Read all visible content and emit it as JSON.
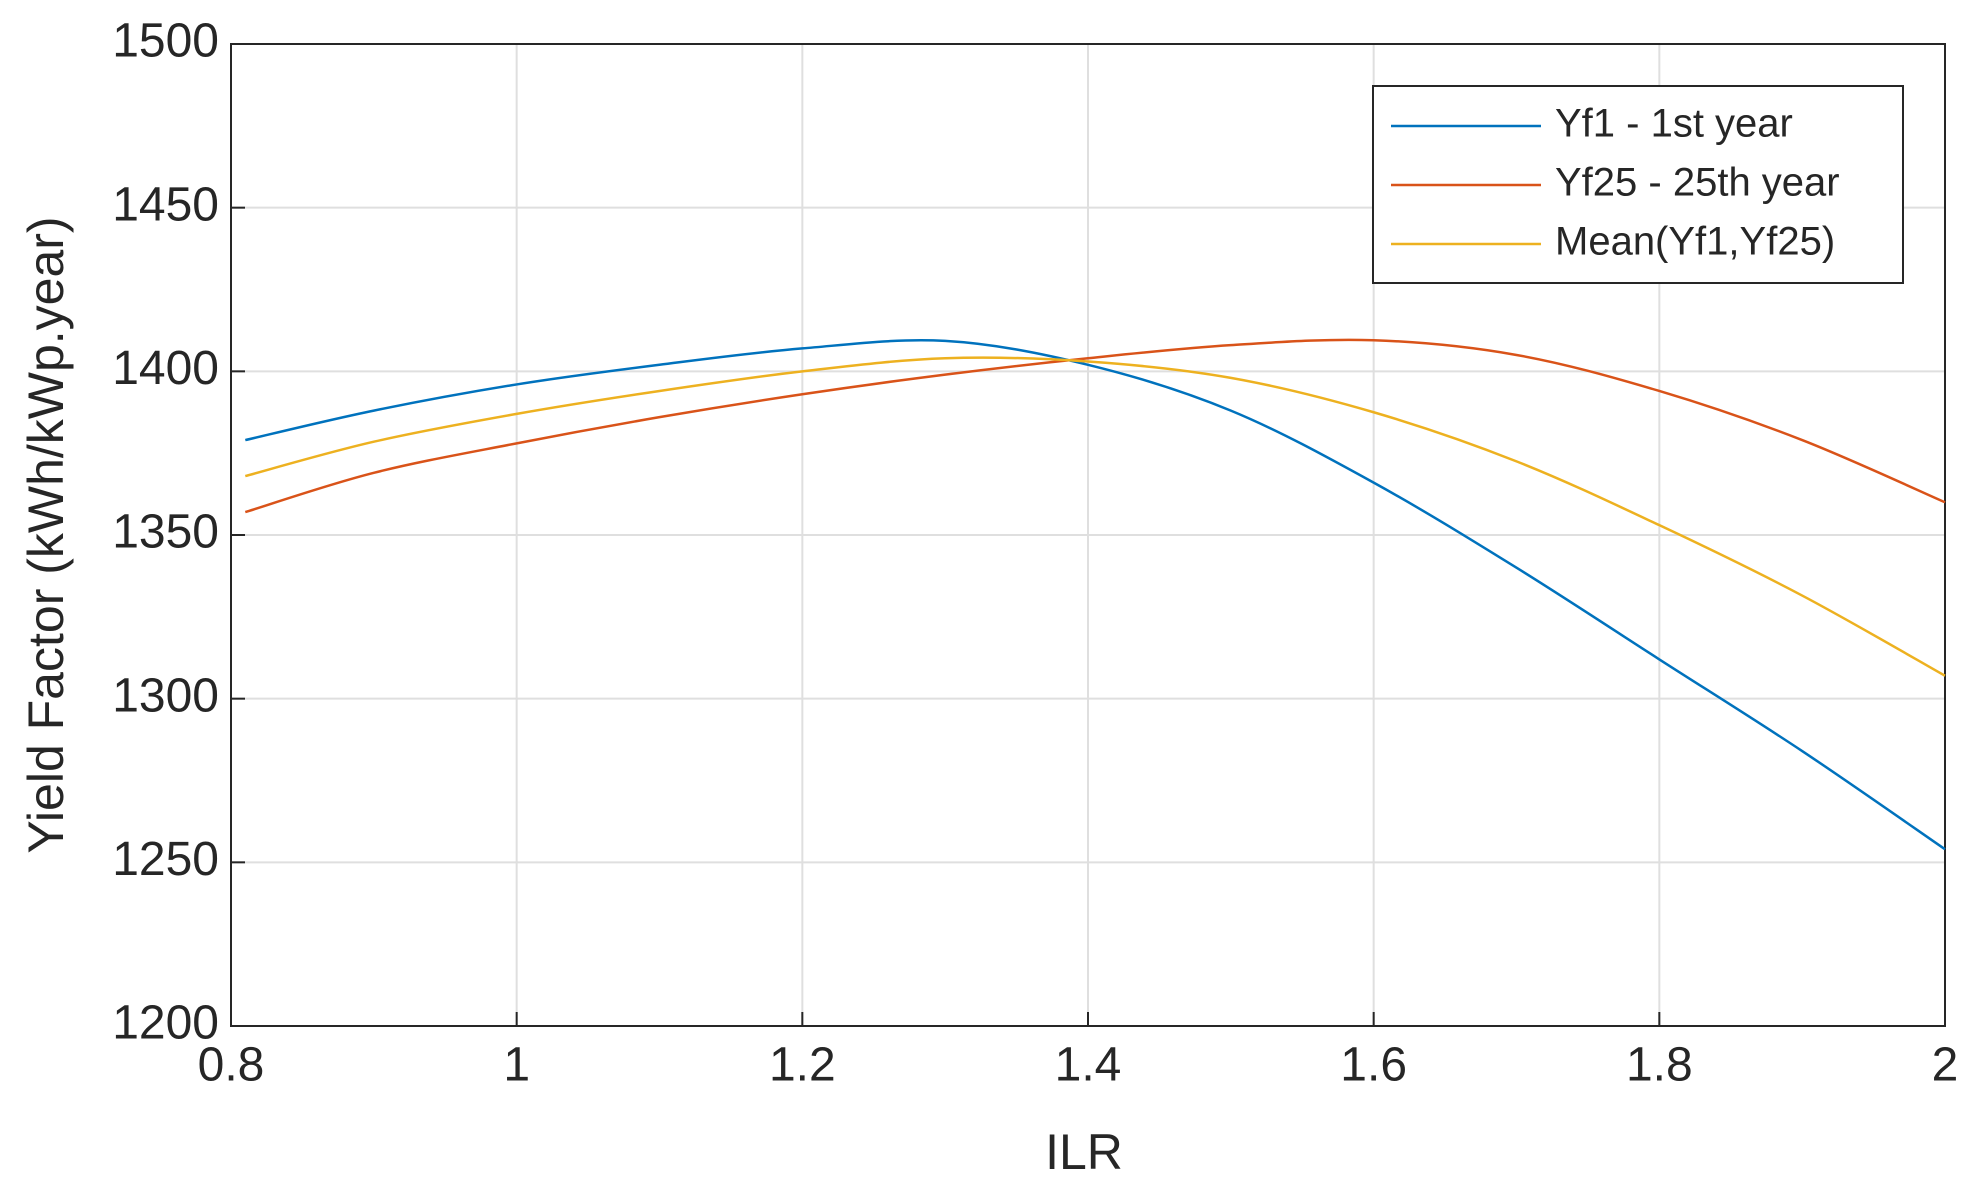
{
  "chart_data": {
    "type": "line",
    "x_label": "ILR",
    "y_label": "Yield Factor (kWh/kWp.year)",
    "x": [
      0.81,
      0.9,
      1.0,
      1.1,
      1.2,
      1.3,
      1.4,
      1.5,
      1.6,
      1.7,
      1.8,
      1.9,
      2.0
    ],
    "series": [
      {
        "name": "Yf1 - 1st year",
        "color": "#0072bd",
        "values": [
          1379,
          1388,
          1396,
          1402,
          1407,
          1409.3,
          1402,
          1388,
          1366,
          1340,
          1312,
          1284,
          1254
        ]
      },
      {
        "name": "Yf25 - 25th year",
        "color": "#d95319",
        "values": [
          1357,
          1369,
          1378,
          1386,
          1393,
          1399,
          1404,
          1408,
          1409.5,
          1405,
          1394,
          1379,
          1360
        ]
      },
      {
        "name": "Mean(Yf1,Yf25)",
        "color": "#edb120",
        "values": [
          1368,
          1378.5,
          1387,
          1394,
          1400,
          1404,
          1403,
          1398,
          1387.5,
          1372.5,
          1353,
          1331.5,
          1307
        ]
      }
    ],
    "xlim": [
      0.8,
      2
    ],
    "xticks": [
      0.8,
      1,
      1.2,
      1.4,
      1.6,
      1.8,
      2
    ],
    "ylim": [
      1200,
      1500
    ],
    "yticks": [
      1200,
      1250,
      1300,
      1350,
      1400,
      1450,
      1500
    ],
    "grid": true,
    "legend": "top-right"
  }
}
